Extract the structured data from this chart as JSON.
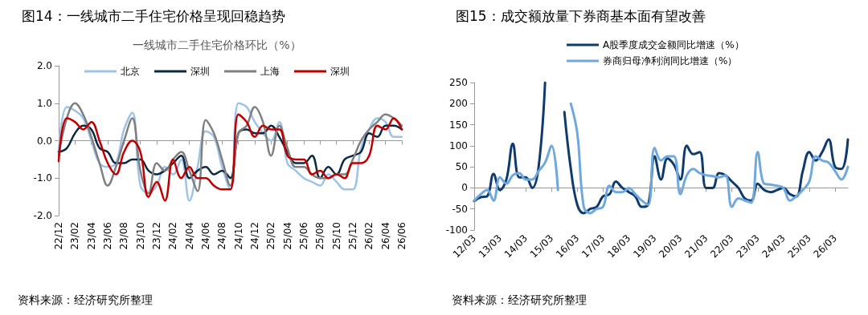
{
  "chart_data": [
    {
      "type": "line",
      "title": "图14：一线城市二手住宅价格呈现回稳趋势",
      "subtitle": "一线城市二手住宅价格环比（%）",
      "legend": "top",
      "annotations": [
        "资料来源：经济研究所整理"
      ],
      "categories": [
        "22/12",
        null,
        "23/02",
        null,
        "23/04",
        null,
        "23/06",
        null,
        "23/08",
        null,
        "23/10",
        null,
        "23/12",
        null,
        "24/02",
        null,
        "24/04",
        null,
        "24/06",
        null,
        "24/08",
        null,
        "24/10",
        null,
        "24/12",
        null,
        "25/02",
        null,
        "25/04",
        null,
        "25/06",
        null,
        "25/08",
        null,
        "25/10",
        null,
        "25/12",
        null,
        "26/02",
        null,
        "26/04",
        null,
        "26/06"
      ],
      "ylim": [
        -2,
        2
      ],
      "yticks": [
        {
          "value": -2,
          "label": "-2.0"
        },
        {
          "value": -1,
          "label": "-1.0"
        },
        {
          "value": 0,
          "label": "0.0"
        },
        {
          "value": 1,
          "label": "1.0"
        },
        {
          "value": 2,
          "label": "2.0"
        }
      ],
      "series": [
        {
          "name": "北京",
          "color": "#9dc3e6",
          "values": [
            -0.3,
            0.9,
            0.8,
            0.6,
            0.0,
            -0.6,
            -0.7,
            -0.6,
            0.3,
            0.75,
            -1.2,
            -1.4,
            -1.2,
            -0.7,
            -0.9,
            -0.5,
            -1.6,
            -0.7,
            0.25,
            0.1,
            -0.7,
            -1.3,
            1.0,
            0.9,
            0.5,
            0.2,
            0.0,
            0.5,
            -0.6,
            -0.8,
            -1.0,
            -1.1,
            -1.2,
            -0.9,
            -1.1,
            -1.3,
            -1.3,
            -0.2,
            0.3,
            0.6,
            0.5,
            0.1,
            0.1
          ]
        },
        {
          "name": "深圳",
          "color": "#0d2840",
          "values": [
            -0.3,
            -0.2,
            0.2,
            0.4,
            0.3,
            -0.2,
            -0.3,
            -0.6,
            -0.6,
            -0.5,
            -0.5,
            -0.8,
            -0.9,
            -0.8,
            -0.6,
            -0.4,
            -1.0,
            -0.8,
            -0.7,
            -0.9,
            -0.8,
            -1.0,
            0.2,
            0.3,
            0.2,
            0.2,
            0.4,
            0.1,
            -0.3,
            -0.6,
            -0.6,
            -0.4,
            -1.0,
            -0.7,
            -0.9,
            -0.5,
            -0.4,
            -0.3,
            0.2,
            0.1,
            0.4,
            0.4,
            0.3
          ]
        },
        {
          "name": "上海",
          "color": "#808080",
          "values": [
            -0.4,
            0.6,
            1.0,
            0.7,
            0.1,
            -0.6,
            -1.2,
            -0.7,
            0.0,
            0.6,
            -0.8,
            -1.4,
            -0.6,
            -0.8,
            -0.5,
            -0.3,
            -0.8,
            -1.35,
            0.55,
            0.2,
            -0.5,
            -1.2,
            0.2,
            0.4,
            0.9,
            0.5,
            -0.4,
            0.4,
            -0.2,
            -0.7,
            -0.7,
            -0.9,
            -1.0,
            -1.0,
            -0.9,
            -0.9,
            -0.5,
            0.0,
            0.3,
            0.5,
            0.7,
            0.6,
            0.4
          ]
        },
        {
          "name": "深圳",
          "color": "#c00000",
          "values": [
            -0.55,
            0.6,
            0.5,
            0.3,
            0.5,
            0.0,
            -0.6,
            -0.9,
            -0.3,
            0.0,
            -0.3,
            -1.5,
            -1.1,
            -1.6,
            -0.5,
            -1.0,
            -0.7,
            -1.0,
            -1.0,
            -1.2,
            -1.3,
            -1.3,
            0.7,
            0.5,
            0.1,
            0.4,
            0.3,
            0.3,
            -0.4,
            -0.5,
            -0.5,
            -0.9,
            -0.8,
            -1.0,
            -0.9,
            -1.0,
            -0.6,
            -0.6,
            -0.4,
            0.4,
            0.3,
            0.6,
            0.3
          ]
        }
      ]
    },
    {
      "type": "line",
      "title": "图15：成交额放量下券商基本面有望改善",
      "legend": "top",
      "annotations": [
        "资料来源：经济研究所整理"
      ],
      "categories": [
        "12/03",
        null,
        null,
        null,
        "13/03",
        null,
        null,
        null,
        "14/03",
        null,
        null,
        null,
        "15/03",
        null,
        null,
        null,
        "16/03",
        null,
        null,
        null,
        "17/03",
        null,
        null,
        null,
        "18/03",
        null,
        null,
        null,
        "19/03",
        null,
        null,
        null,
        "20/03",
        null,
        null,
        null,
        "21/03",
        null,
        null,
        null,
        "22/03",
        null,
        null,
        null,
        "23/03",
        null,
        null,
        null,
        "24/03",
        null,
        null,
        null,
        "25/03",
        null,
        null,
        null,
        "26/03",
        null,
        null
      ],
      "ylim": [
        -100,
        250
      ],
      "yticks": [
        -100,
        -50,
        0,
        50,
        100,
        150,
        200,
        250
      ],
      "series": [
        {
          "name": "A股季度成交金额同比增速（%）",
          "color": "#0e3a6e",
          "values": [
            -31,
            -22,
            -20,
            33,
            -5,
            20,
            105,
            25,
            25,
            0,
            50,
            250,
            null,
            null,
            180,
            45,
            -40,
            -60,
            -50,
            -45,
            -20,
            -15,
            15,
            0,
            -10,
            -20,
            -45,
            -40,
            75,
            20,
            70,
            55,
            20,
            100,
            80,
            85,
            0,
            0,
            35,
            30,
            15,
            0,
            -25,
            -30,
            10,
            -5,
            -10,
            -5,
            0,
            -15,
            -20,
            40,
            85,
            65,
            85,
            115,
            50,
            45,
            115
          ]
        },
        {
          "name": "券商归母净利润同比增速（%）",
          "color": "#6fa8dc",
          "values": [
            -30,
            -15,
            -5,
            -30,
            25,
            10,
            30,
            35,
            20,
            20,
            40,
            60,
            100,
            -5,
            null,
            200,
            130,
            -45,
            -60,
            -50,
            -45,
            5,
            -10,
            -10,
            0,
            -15,
            -30,
            -40,
            95,
            65,
            75,
            75,
            -15,
            30,
            45,
            35,
            30,
            28,
            25,
            30,
            -45,
            -25,
            -30,
            -35,
            85,
            10,
            8,
            5,
            0,
            -30,
            -20,
            -5,
            15,
            75,
            65,
            60,
            40,
            20,
            50
          ]
        }
      ]
    }
  ]
}
